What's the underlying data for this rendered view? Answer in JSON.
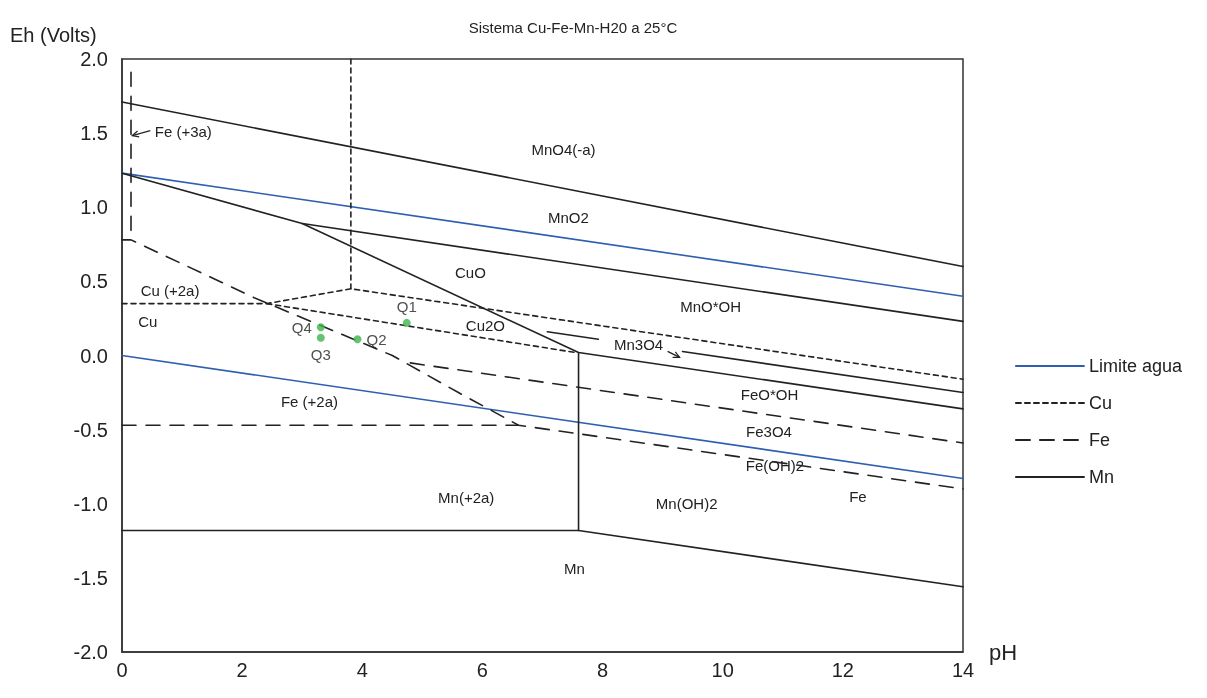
{
  "chart_data": {
    "type": "line",
    "title": "Sistema Cu-Fe-Mn-H20 a 25°C",
    "xlabel": "pH",
    "ylabel": "Eh (Volts)",
    "xlim": [
      0,
      14
    ],
    "xticks": [
      0,
      2,
      4,
      6,
      8,
      10,
      12,
      14
    ],
    "ylim": [
      -2.0,
      2.0
    ],
    "yticks": [
      {
        "value": 2,
        "label": "2.0"
      },
      {
        "value": 1.5,
        "label": "1.5"
      },
      {
        "value": 1,
        "label": "1.0"
      },
      {
        "value": 0.5,
        "label": "0.5"
      },
      {
        "value": 0,
        "label": "0.0"
      },
      {
        "value": -0.5,
        "label": "-0.5"
      },
      {
        "value": -1,
        "label": "-1.0"
      },
      {
        "value": -1.5,
        "label": "-1.5"
      },
      {
        "value": -2,
        "label": "-2.0"
      }
    ],
    "legend": "right",
    "marker": "none",
    "series": [
      {
        "name": "Limite agua",
        "color": "#2f5fb0",
        "line_style": "solid",
        "x": [
          0,
          14
        ],
        "values": [
          1.23,
          0.4
        ]
      },
      {
        "color": "#2f5fb0",
        "line_style": "solid",
        "x": [
          0,
          14
        ],
        "values": [
          0.0,
          -0.83
        ]
      },
      {
        "name": "Cu",
        "color": "#222222",
        "line_style": "dotted",
        "x": [
          0,
          2.41,
          3.81,
          14
        ],
        "values": [
          0.35,
          0.35,
          0.45,
          -0.16
        ]
      },
      {
        "color": "#222222",
        "line_style": "dotted",
        "x": [
          3.81,
          3.81
        ],
        "values": [
          2.0,
          0.45
        ]
      },
      {
        "color": "#222222",
        "line_style": "dotted",
        "x": [
          2.41,
          7.55
        ],
        "values": [
          0.35,
          0.02
        ]
      },
      {
        "name": "Fe",
        "color": "#222222",
        "line_style": "dashed",
        "x": [
          0,
          0.15,
          2.2,
          4.5,
          5.6,
          6.6,
          14
        ],
        "values": [
          0.78,
          0.78,
          0.39,
          0.0,
          -0.25,
          -0.47,
          -0.9
        ]
      },
      {
        "color": "#222222",
        "line_style": "dashed",
        "x": [
          0,
          6.6
        ],
        "values": [
          -0.47,
          -0.47
        ]
      },
      {
        "color": "#222222",
        "line_style": "dashed",
        "x": [
          0.15,
          0.15
        ],
        "values": [
          1.91,
          0.78
        ]
      },
      {
        "color": "#222222",
        "line_style": "dashed",
        "x": [
          4.8,
          14
        ],
        "values": [
          -0.05,
          -0.59
        ]
      },
      {
        "name": "Mn",
        "color": "#222222",
        "line_style": "solid",
        "x": [
          0,
          14
        ],
        "values": [
          1.71,
          0.6
        ]
      },
      {
        "color": "#222222",
        "line_style": "solid",
        "x": [
          0,
          3.0,
          7.6,
          14
        ],
        "values": [
          1.23,
          0.89,
          0.02,
          -0.36
        ]
      },
      {
        "color": "#222222",
        "line_style": "solid",
        "x": [
          7.6,
          7.6
        ],
        "values": [
          0.02,
          -1.18
        ]
      },
      {
        "color": "#222222",
        "line_style": "solid",
        "x": [
          3.0,
          14
        ],
        "values": [
          0.89,
          0.23
        ]
      },
      {
        "color": "#222222",
        "line_style": "solid",
        "x": [
          7.08,
          7.93
        ],
        "values": [
          0.16,
          0.11
        ]
      },
      {
        "color": "#222222",
        "line_style": "solid",
        "x": [
          9.33,
          14
        ],
        "values": [
          0.027,
          -0.25
        ]
      },
      {
        "color": "#222222",
        "line_style": "solid",
        "x": [
          0,
          7.6,
          14
        ],
        "values": [
          -1.18,
          -1.18,
          -1.56
        ]
      },
      {
        "type": "scatter",
        "color": "#3cb44b",
        "marker": "circle",
        "x": [
          4.74,
          3.92,
          3.31,
          3.31
        ],
        "values": [
          0.22,
          0.11,
          0.12,
          0.19
        ],
        "value_labels": [
          "Q1",
          "Q2",
          "Q3",
          "Q4"
        ]
      }
    ],
    "annotations": [
      "Fe (+3a)",
      "MnO4(-a)",
      "MnO2",
      "CuO",
      "Cu (+2a)",
      "Cu",
      "Cu2O",
      "MnO*OH",
      "Mn3O4",
      "FeO*OH",
      "Fe3O4",
      "Fe(OH)2",
      "Fe",
      "Mn(OH)2",
      "Mn",
      "Mn(+2a)",
      "Fe (+2a)"
    ]
  }
}
